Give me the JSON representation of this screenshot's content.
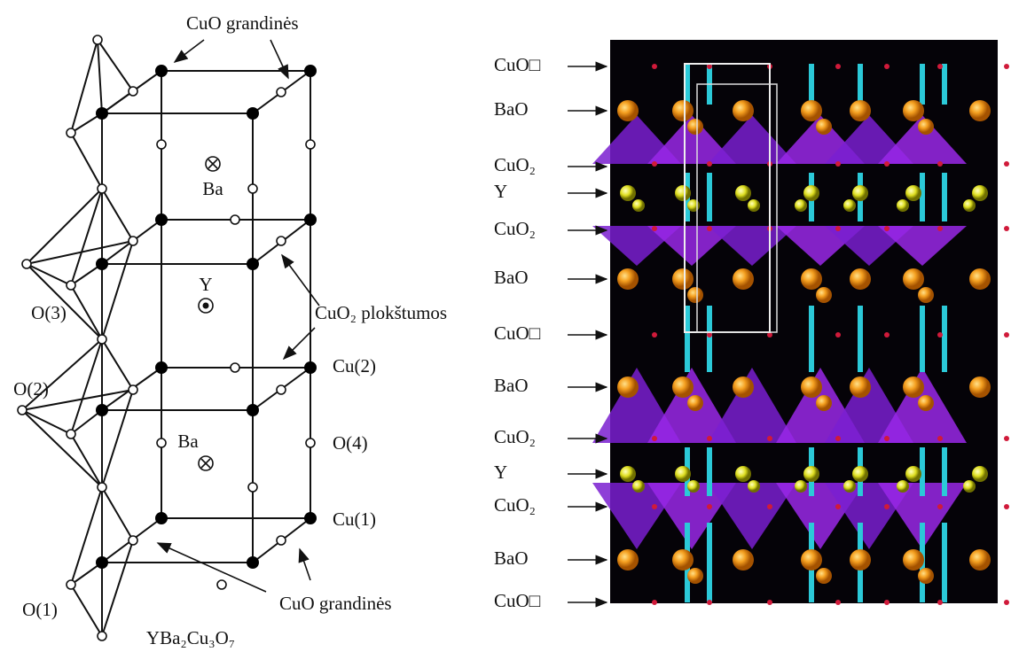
{
  "left": {
    "labels": [
      "CuO grandinės",
      "Ba",
      "Y",
      "CuO₂ plokštumos",
      "O(3)",
      "O(2)",
      "Cu(2)",
      "O(4)",
      "Ba",
      "Cu(1)",
      "O(1)",
      "CuO grandinės",
      "YBa₂Cu₃O₇"
    ]
  },
  "right": {
    "layers": [
      "CuO□",
      "BaO",
      "CuO₂",
      "Y",
      "CuO₂",
      "BaO",
      "CuO□",
      "BaO",
      "CuO₂",
      "Y",
      "CuO₂",
      "BaO",
      "CuO□"
    ]
  }
}
